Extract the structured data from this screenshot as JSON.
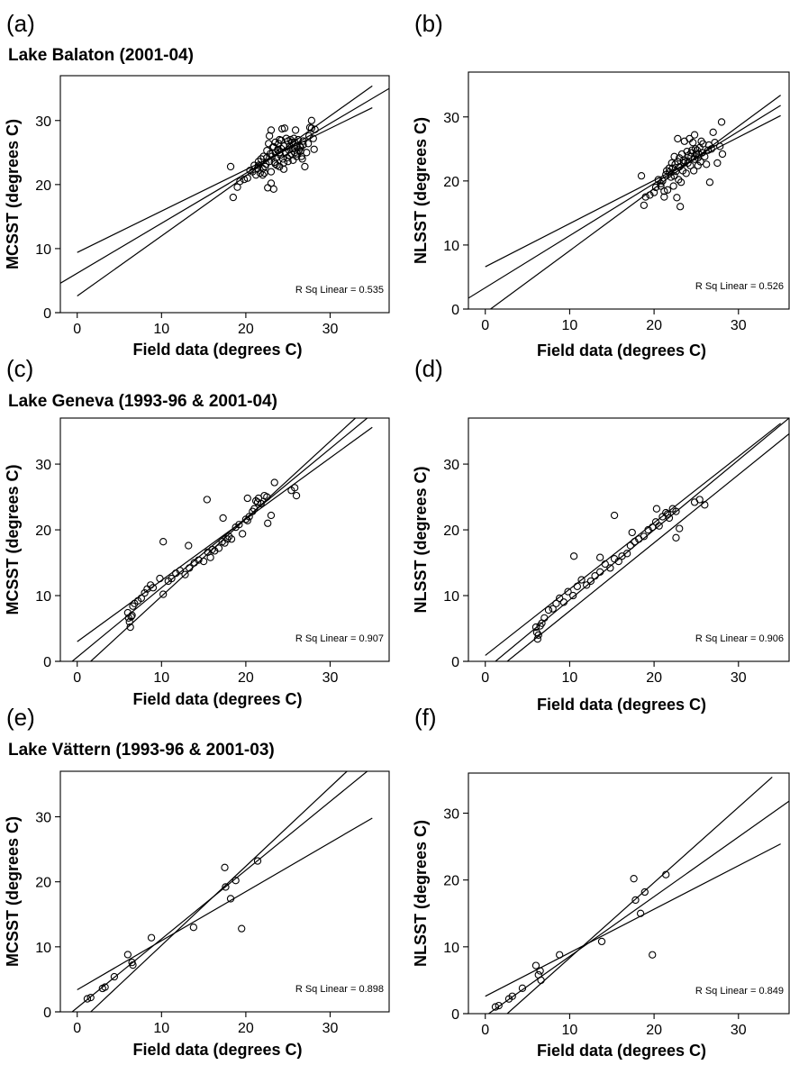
{
  "chart_data": [
    {
      "panel": "(a)",
      "title": "Lake Balaton (2001-04)",
      "type": "scatter",
      "xlabel": "Field data (degrees C)",
      "ylabel": "MCSST (degrees C)",
      "xlim": [
        -2,
        37
      ],
      "ylim": [
        0,
        37
      ],
      "xticks": [
        0,
        10,
        20,
        30
      ],
      "yticks": [
        0,
        10,
        20,
        30
      ],
      "grid": false,
      "annotation": "R Sq Linear = 0.535",
      "fit_lines": [
        {
          "name": "upper",
          "points": [
            [
              0,
              9.4
            ],
            [
              35,
              32
            ]
          ]
        },
        {
          "name": "fit",
          "points": [
            [
              -2,
              4.6
            ],
            [
              37,
              35
            ]
          ]
        },
        {
          "name": "lower",
          "points": [
            [
              0,
              2.6
            ],
            [
              35,
              35.4
            ]
          ]
        }
      ],
      "x": [
        18.2,
        18.5,
        19.0,
        19.3,
        19.8,
        20.2,
        20.5,
        20.8,
        21.0,
        21.2,
        21.4,
        21.5,
        21.7,
        21.8,
        22.0,
        22.1,
        22.2,
        22.3,
        22.4,
        22.5,
        22.5,
        22.6,
        22.7,
        22.8,
        22.9,
        23.0,
        23.0,
        23.1,
        23.2,
        23.3,
        23.4,
        23.5,
        23.5,
        23.6,
        23.7,
        23.8,
        23.9,
        24.0,
        24.0,
        24.1,
        24.2,
        24.3,
        24.4,
        24.5,
        24.5,
        24.6,
        24.7,
        24.8,
        24.9,
        25.0,
        25.0,
        25.1,
        25.2,
        25.3,
        25.4,
        25.5,
        25.5,
        25.6,
        25.7,
        25.8,
        25.9,
        26.0,
        26.0,
        26.1,
        26.2,
        26.3,
        26.4,
        26.5,
        26.6,
        26.7,
        26.8,
        27.0,
        27.2,
        27.4,
        27.5,
        27.6,
        27.8,
        28.0,
        28.1,
        28.2,
        23.0,
        23.5,
        24.5,
        25.8,
        26.5,
        27.8,
        22.0,
        21.5,
        24.0,
        26.8,
        22.8,
        23.8,
        25.2,
        24.2,
        23.3
      ],
      "y": [
        22.8,
        18.0,
        19.6,
        20.5,
        20.8,
        21.0,
        22.2,
        22.0,
        23.0,
        21.5,
        22.5,
        23.6,
        21.8,
        24.0,
        22.5,
        24.4,
        21.8,
        22.8,
        23.2,
        24.2,
        25.3,
        19.5,
        26.4,
        23.6,
        24.8,
        28.5,
        22.0,
        24.4,
        25.8,
        19.3,
        23.5,
        25.0,
        26.6,
        24.2,
        23.0,
        25.5,
        26.4,
        27.0,
        22.8,
        24.6,
        25.6,
        28.7,
        24.0,
        26.0,
        23.4,
        28.8,
        25.0,
        27.2,
        24.2,
        26.8,
        23.6,
        25.4,
        26.0,
        27.0,
        24.8,
        25.6,
        26.6,
        23.8,
        27.2,
        25.0,
        28.5,
        26.0,
        24.4,
        24.8,
        27.0,
        25.4,
        26.0,
        25.2,
        24.4,
        24.0,
        26.8,
        22.8,
        25.0,
        26.4,
        27.6,
        28.9,
        30.0,
        27.2,
        25.5,
        28.6,
        20.2,
        23.2,
        22.4,
        26.6,
        25.8,
        28.8,
        21.5,
        23.0,
        25.0,
        26.2,
        27.6,
        25.3,
        24.5,
        26.9,
        25.9
      ]
    },
    {
      "panel": "(b)",
      "title": "",
      "type": "scatter",
      "xlabel": "Field data (degrees C)",
      "ylabel": "NLSST (degrees C)",
      "xlim": [
        -2,
        36
      ],
      "ylim": [
        0,
        37
      ],
      "xticks": [
        0,
        10,
        20,
        30
      ],
      "yticks": [
        0,
        10,
        20,
        30
      ],
      "grid": false,
      "annotation": "R Sq Linear = 0.526",
      "fit_lines": [
        {
          "name": "upper",
          "points": [
            [
              0,
              6.6
            ],
            [
              35,
              30.2
            ]
          ]
        },
        {
          "name": "fit",
          "points": [
            [
              -2,
              1.7
            ],
            [
              35,
              31.8
            ]
          ]
        },
        {
          "name": "lower",
          "points": [
            [
              0,
              -0.6
            ],
            [
              35,
              33.4
            ]
          ]
        }
      ],
      "x": [
        18.5,
        18.8,
        19.0,
        19.5,
        20.0,
        20.2,
        20.5,
        20.8,
        21.0,
        21.2,
        21.4,
        21.5,
        21.6,
        21.8,
        22.0,
        22.1,
        22.2,
        22.3,
        22.4,
        22.5,
        22.6,
        22.7,
        22.8,
        22.9,
        23.0,
        23.1,
        23.2,
        23.3,
        23.4,
        23.5,
        23.6,
        23.7,
        23.8,
        23.9,
        24.0,
        24.1,
        24.2,
        24.3,
        24.4,
        24.5,
        24.6,
        24.7,
        24.8,
        24.9,
        25.0,
        25.1,
        25.2,
        25.3,
        25.4,
        25.5,
        25.6,
        25.7,
        25.8,
        26.0,
        26.2,
        26.4,
        26.6,
        26.8,
        27.0,
        27.2,
        27.5,
        27.8,
        28.0,
        28.1,
        22.8,
        23.5,
        24.8,
        21.8,
        23.0,
        24.4,
        25.2,
        22.4,
        26.5,
        20.8,
        21.2
      ],
      "y": [
        20.8,
        16.2,
        17.5,
        17.8,
        18.2,
        19.0,
        20.2,
        19.2,
        20.0,
        17.5,
        21.0,
        21.6,
        18.6,
        22.0,
        20.6,
        22.8,
        22.0,
        19.2,
        23.8,
        22.6,
        21.5,
        17.4,
        23.0,
        20.2,
        23.6,
        16.0,
        19.8,
        24.2,
        21.6,
        22.8,
        26.2,
        23.0,
        21.2,
        24.6,
        22.8,
        24.0,
        26.6,
        22.4,
        23.8,
        24.8,
        26.0,
        21.6,
        23.4,
        25.0,
        24.2,
        24.8,
        22.4,
        24.2,
        25.2,
        23.0,
        26.2,
        24.4,
        25.8,
        23.8,
        22.6,
        24.8,
        19.8,
        25.0,
        27.6,
        26.0,
        22.8,
        25.4,
        29.2,
        24.2,
        26.6,
        23.2,
        27.2,
        21.4,
        22.2,
        24.4,
        23.6,
        20.8,
        25.6,
        19.6,
        18.4
      ]
    },
    {
      "panel": "(c)",
      "title": "Lake Geneva (1993-96 & 2001-04)",
      "type": "scatter",
      "xlabel": "Field data (degrees C)",
      "ylabel": "MCSST (degrees C)",
      "xlim": [
        -2,
        37
      ],
      "ylim": [
        0,
        37
      ],
      "xticks": [
        0,
        10,
        20,
        30
      ],
      "yticks": [
        0,
        10,
        20,
        30
      ],
      "grid": false,
      "annotation": "R Sq Linear = 0.907",
      "fit_lines": [
        {
          "name": "upper",
          "points": [
            [
              0,
              3.0
            ],
            [
              35,
              35.6
            ]
          ]
        },
        {
          "name": "fit",
          "points": [
            [
              -0.6,
              0
            ],
            [
              34.4,
              37
            ]
          ]
        },
        {
          "name": "lower",
          "points": [
            [
              1.6,
              0
            ],
            [
              33.0,
              37
            ]
          ]
        }
      ],
      "x": [
        6.0,
        6.1,
        6.2,
        6.3,
        6.4,
        6.5,
        6.6,
        6.8,
        7.2,
        7.6,
        8.0,
        8.3,
        8.7,
        9.0,
        9.8,
        10.2,
        10.8,
        11.2,
        11.7,
        12.2,
        12.8,
        13.3,
        13.9,
        14.4,
        15.0,
        15.5,
        15.8,
        16.0,
        16.3,
        16.8,
        17.2,
        17.5,
        17.8,
        18.0,
        18.3,
        18.8,
        19.2,
        19.6,
        20.0,
        20.2,
        20.4,
        20.8,
        21.0,
        21.2,
        21.5,
        21.8,
        22.2,
        22.6,
        23.0,
        23.4,
        25.4,
        25.8,
        26.0,
        15.4,
        10.2,
        17.3,
        13.2,
        20.2,
        21.4,
        22.5
      ],
      "y": [
        7.4,
        6.6,
        6.0,
        5.2,
        6.8,
        7.0,
        8.4,
        8.8,
        9.2,
        9.6,
        10.4,
        11.0,
        11.6,
        11.2,
        12.6,
        10.2,
        12.2,
        12.6,
        13.4,
        13.8,
        13.2,
        14.2,
        15.0,
        15.4,
        15.2,
        16.6,
        15.8,
        17.0,
        16.8,
        17.2,
        18.2,
        18.0,
        18.6,
        19.0,
        18.6,
        20.4,
        20.8,
        19.4,
        21.6,
        21.4,
        22.0,
        22.8,
        23.2,
        24.4,
        24.8,
        24.0,
        25.2,
        21.0,
        22.2,
        27.2,
        26.0,
        26.4,
        25.2,
        24.6,
        18.2,
        21.8,
        17.6,
        24.8,
        24.2,
        25.0
      ]
    },
    {
      "panel": "(d)",
      "title": "",
      "type": "scatter",
      "xlabel": "Field data (degrees C)",
      "ylabel": "NLSST (degrees C)",
      "xlim": [
        -2,
        36
      ],
      "ylim": [
        0,
        37
      ],
      "xticks": [
        0,
        10,
        20,
        30
      ],
      "yticks": [
        0,
        10,
        20,
        30
      ],
      "grid": false,
      "annotation": "R Sq Linear = 0.906",
      "fit_lines": [
        {
          "name": "upper",
          "points": [
            [
              0,
              0.9
            ],
            [
              35,
              36.2
            ]
          ]
        },
        {
          "name": "fit",
          "points": [
            [
              1.2,
              0
            ],
            [
              36,
              37
            ]
          ]
        },
        {
          "name": "lower",
          "points": [
            [
              2.6,
              0
            ],
            [
              36,
              34.6
            ]
          ]
        }
      ],
      "x": [
        6.0,
        6.1,
        6.2,
        6.3,
        6.5,
        6.7,
        7.0,
        7.5,
        8.0,
        8.4,
        8.8,
        9.3,
        9.8,
        10.4,
        10.9,
        11.4,
        12.0,
        12.5,
        13.0,
        13.6,
        14.2,
        14.8,
        15.3,
        15.8,
        16.2,
        16.8,
        17.2,
        17.7,
        18.2,
        18.8,
        19.3,
        19.8,
        20.2,
        20.6,
        21.0,
        21.4,
        21.8,
        22.2,
        22.6,
        23.0,
        24.8,
        25.4,
        26.0,
        15.3,
        10.5,
        17.4,
        13.6,
        20.3,
        21.6,
        22.6
      ],
      "y": [
        5.2,
        4.4,
        3.4,
        4.0,
        5.4,
        5.8,
        6.6,
        7.8,
        8.0,
        8.8,
        9.6,
        9.0,
        10.6,
        10.0,
        11.4,
        12.4,
        11.6,
        12.2,
        13.0,
        13.6,
        14.8,
        14.2,
        15.6,
        15.2,
        16.0,
        16.4,
        17.6,
        18.2,
        18.6,
        19.0,
        20.0,
        20.4,
        21.2,
        20.6,
        22.0,
        22.6,
        21.8,
        23.2,
        18.8,
        20.2,
        24.2,
        24.6,
        23.8,
        22.2,
        16.0,
        19.6,
        15.8,
        23.2,
        22.4,
        22.8
      ]
    },
    {
      "panel": "(e)",
      "title": "Lake Vättern (1993-96 & 2001-03)",
      "type": "scatter",
      "xlabel": "Field data (degrees C)",
      "ylabel": "MCSST (degrees C)",
      "xlim": [
        -2,
        37
      ],
      "ylim": [
        0,
        37
      ],
      "xticks": [
        0,
        10,
        20,
        30
      ],
      "yticks": [
        0,
        10,
        20,
        30
      ],
      "grid": false,
      "annotation": "R Sq Linear = 0.898",
      "fit_lines": [
        {
          "name": "upper",
          "points": [
            [
              0,
              3.4
            ],
            [
              35,
              29.8
            ]
          ]
        },
        {
          "name": "fit",
          "points": [
            [
              -0.6,
              0
            ],
            [
              34.4,
              37
            ]
          ]
        },
        {
          "name": "lower",
          "points": [
            [
              1.6,
              0
            ],
            [
              32.0,
              37
            ]
          ]
        }
      ],
      "x": [
        1.2,
        1.6,
        3.0,
        3.3,
        4.4,
        6.0,
        6.5,
        6.6,
        8.8,
        13.8,
        17.5,
        17.6,
        18.2,
        18.8,
        19.5,
        21.4
      ],
      "y": [
        2.0,
        2.2,
        3.6,
        3.8,
        5.4,
        8.8,
        7.6,
        7.2,
        11.4,
        13.0,
        22.2,
        19.2,
        17.4,
        20.2,
        12.8,
        23.2
      ]
    },
    {
      "panel": "(f)",
      "title": "",
      "type": "scatter",
      "xlabel": "Field data (degrees C)",
      "ylabel": "NLSST (degrees C)",
      "xlim": [
        -2,
        36
      ],
      "ylim": [
        0,
        36
      ],
      "xticks": [
        0,
        10,
        20,
        30
      ],
      "yticks": [
        0,
        10,
        20,
        30
      ],
      "grid": false,
      "annotation": "R Sq Linear = 0.849",
      "fit_lines": [
        {
          "name": "upper",
          "points": [
            [
              0,
              2.6
            ],
            [
              35,
              25.4
            ]
          ]
        },
        {
          "name": "fit",
          "points": [
            [
              0.4,
              0
            ],
            [
              36,
              31.8
            ]
          ]
        },
        {
          "name": "lower",
          "points": [
            [
              2.6,
              0
            ],
            [
              34,
              35.4
            ]
          ]
        }
      ],
      "x": [
        1.2,
        1.6,
        2.8,
        3.2,
        4.4,
        6.0,
        6.3,
        6.5,
        6.6,
        8.8,
        13.8,
        17.6,
        17.8,
        18.4,
        18.9,
        19.8,
        21.4
      ],
      "y": [
        1.0,
        1.2,
        2.2,
        2.6,
        3.8,
        7.2,
        5.8,
        6.4,
        5.0,
        8.8,
        10.8,
        20.2,
        17.0,
        15.0,
        18.2,
        8.8,
        20.8
      ]
    }
  ]
}
